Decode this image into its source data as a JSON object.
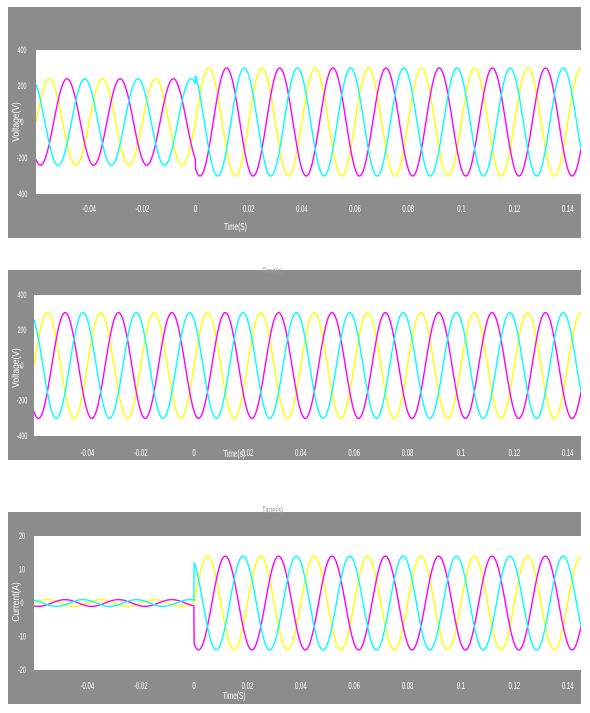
{
  "colors": {
    "panel_background": "#8c8c8c",
    "plot_background": "#ffffff",
    "axis_text": "#ffffff",
    "phase_a": "#ffff00",
    "phase_b": "#ff00ff",
    "phase_c": "#00ffff"
  },
  "stray_labels": [
    "Time(s)",
    "Time(s)"
  ],
  "chart_data": [
    {
      "type": "line",
      "title": "",
      "xlabel": "Time(S)",
      "ylabel": "Voltage(V)",
      "xlim": [
        -0.06,
        0.145
      ],
      "ylim": [
        -400,
        400
      ],
      "xticks": [
        -0.04,
        -0.02,
        0,
        0.02,
        0.04,
        0.06,
        0.08,
        0.1,
        0.12,
        0.14
      ],
      "xtick_labels": [
        "-0.04",
        "-0.02",
        "0",
        "0.02",
        "0.04",
        "0.06",
        "0.08",
        "0.1",
        "0.12",
        "0.14"
      ],
      "yticks": [
        -400,
        -200,
        0,
        200,
        400
      ],
      "ytick_labels": [
        "-400",
        "-200",
        "0",
        "200",
        "400"
      ],
      "grid": false,
      "frequency_hz": 50,
      "disturbance_time": 0,
      "series": [
        {
          "color": "#ffff00",
          "phase_deg": 0,
          "amplitude_before": 240,
          "amplitude_after": 300
        },
        {
          "color": "#ff00ff",
          "phase_deg": -120,
          "amplitude_before": 240,
          "amplitude_after": 300
        },
        {
          "color": "#00ffff",
          "phase_deg": 120,
          "amplitude_before": 240,
          "amplitude_after": 300
        }
      ]
    },
    {
      "type": "line",
      "title": "",
      "xlabel": "Time(s)",
      "ylabel": "Voltage(V)",
      "xlim": [
        -0.06,
        0.145
      ],
      "ylim": [
        -400,
        400
      ],
      "xticks": [
        -0.04,
        -0.02,
        0,
        0.02,
        0.04,
        0.06,
        0.08,
        0.1,
        0.12,
        0.14
      ],
      "xtick_labels": [
        "-0.04",
        "-0.02",
        "0",
        "0.02",
        "0.04",
        "0.06",
        "0.08",
        "0.1",
        "0.12",
        "0.14"
      ],
      "yticks": [
        -400,
        -200,
        0,
        200,
        400
      ],
      "ytick_labels": [
        "-400",
        "-200",
        "0",
        "200",
        "400"
      ],
      "grid": false,
      "frequency_hz": 50,
      "disturbance_time": 0,
      "series": [
        {
          "color": "#ffff00",
          "phase_deg": 0,
          "amplitude_before": 300,
          "amplitude_after": 300
        },
        {
          "color": "#ff00ff",
          "phase_deg": -120,
          "amplitude_before": 300,
          "amplitude_after": 300
        },
        {
          "color": "#00ffff",
          "phase_deg": 120,
          "amplitude_before": 300,
          "amplitude_after": 300
        }
      ]
    },
    {
      "type": "line",
      "title": "",
      "xlabel": "Time(S)",
      "ylabel": "Current(A)",
      "xlim": [
        -0.06,
        0.145
      ],
      "ylim": [
        -20,
        20
      ],
      "xticks": [
        -0.04,
        -0.02,
        0,
        0.02,
        0.04,
        0.06,
        0.08,
        0.1,
        0.12,
        0.14
      ],
      "xtick_labels": [
        "-0.04",
        "-0.02",
        "0",
        "0.02",
        "0.04",
        "0.06",
        "0.08",
        "0.1",
        "0.12",
        "0.14"
      ],
      "yticks": [
        -20,
        -10,
        0,
        10,
        20
      ],
      "ytick_labels": [
        "-20",
        "-10",
        "0",
        "10",
        "20"
      ],
      "grid": false,
      "frequency_hz": 50,
      "disturbance_time": 0,
      "series": [
        {
          "color": "#ffff00",
          "phase_deg": 0,
          "amplitude_before": 1,
          "amplitude_after": 14
        },
        {
          "color": "#ff00ff",
          "phase_deg": -120,
          "amplitude_before": 1,
          "amplitude_after": 14
        },
        {
          "color": "#00ffff",
          "phase_deg": 120,
          "amplitude_before": 1,
          "amplitude_after": 14
        }
      ]
    }
  ]
}
